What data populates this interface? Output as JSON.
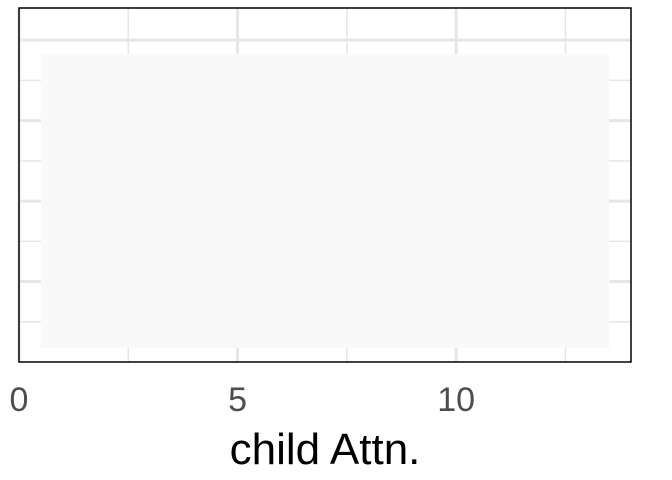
{
  "chart_data": {
    "type": "bar",
    "title": "",
    "xlabel": "child Attn.",
    "ylabel": "",
    "x_ticks": [
      0,
      5,
      10
    ],
    "x_minor_ticks": [
      2.5,
      7.5,
      12.5
    ],
    "xlim": [
      0,
      14
    ],
    "bars": [
      {
        "x_start": 0.5,
        "x_end": 13.5,
        "value": 1
      }
    ],
    "ylim": [
      0,
      1.1
    ],
    "y_gridlines_major": 4,
    "grid": true,
    "legend": "none",
    "colors": {
      "bar_fill": "#f9f9f9",
      "grid": "#e6e6e6",
      "panel_border": "#000000",
      "tick_text": "#4d4d4d",
      "title_text": "#000000"
    }
  }
}
